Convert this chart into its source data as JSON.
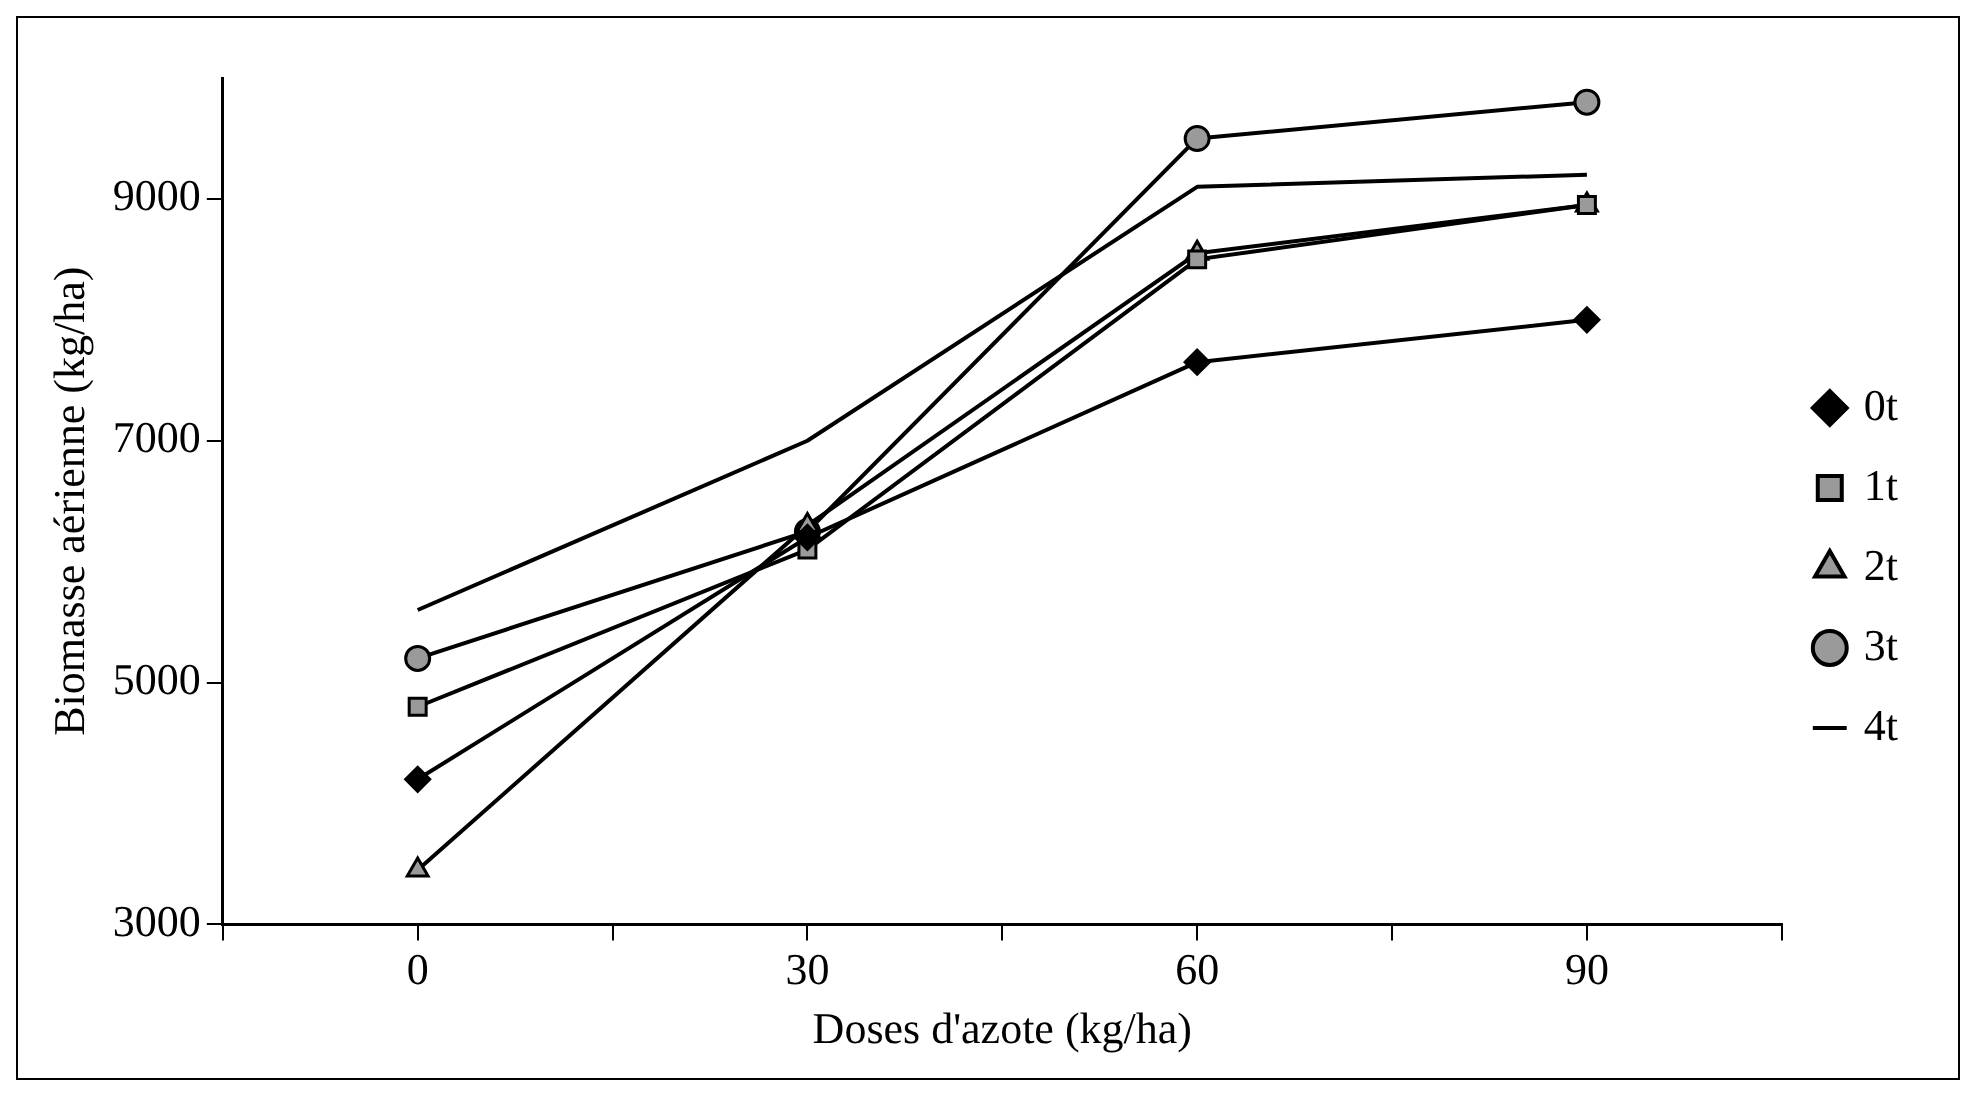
{
  "chart_data": {
    "type": "line",
    "xlabel": "Doses d'azote (kg/ha)",
    "ylabel": "Biomasse aérienne (kg/ha)",
    "x": [
      0,
      30,
      60,
      90
    ],
    "xlim": [
      -15,
      105
    ],
    "xticks": [
      {
        "value": -15,
        "label": null
      },
      0,
      {
        "value": 15,
        "label": null
      },
      30,
      {
        "value": 45,
        "label": null
      },
      60,
      {
        "value": 75,
        "label": null
      },
      90,
      {
        "value": 105,
        "label": null
      }
    ],
    "ylim": [
      3000,
      10000
    ],
    "yticks": [
      3000,
      5000,
      7000,
      9000
    ],
    "grid": false,
    "legend": "right",
    "series": [
      {
        "name": "0t",
        "color": "#000000",
        "marker": "diamond",
        "values": [
          4200,
          6200,
          7650,
          8000
        ]
      },
      {
        "name": "1t",
        "color": "#000000",
        "marker": "square",
        "values": [
          4800,
          6100,
          8500,
          8950
        ]
      },
      {
        "name": "2t",
        "color": "#000000",
        "marker": "triangle",
        "values": [
          3450,
          6300,
          8550,
          8950
        ]
      },
      {
        "name": "3t",
        "color": "#000000",
        "marker": "circle",
        "values": [
          5200,
          6250,
          9500,
          9800
        ]
      },
      {
        "name": "4t",
        "color": "#000000",
        "marker": "none",
        "values": [
          5600,
          7000,
          9100,
          9200
        ]
      }
    ]
  }
}
